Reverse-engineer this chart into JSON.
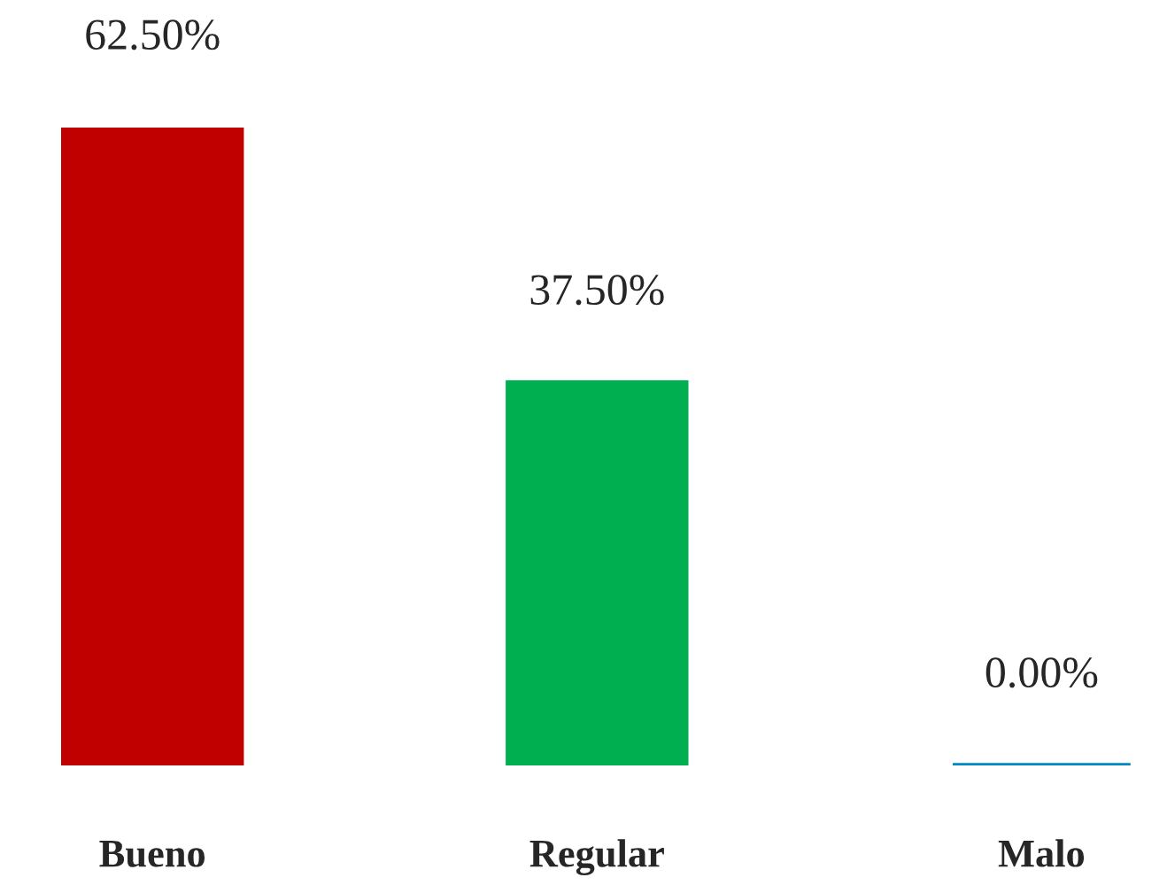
{
  "chart_data": {
    "type": "bar",
    "categories": [
      "Bueno",
      "Regular",
      "Malo"
    ],
    "values": [
      62.5,
      37.5,
      0
    ],
    "colors": [
      "#c00000",
      "#00b050",
      "#0088c0"
    ],
    "value_labels": [
      "62.50%",
      "37.50%",
      "0.00%"
    ]
  }
}
